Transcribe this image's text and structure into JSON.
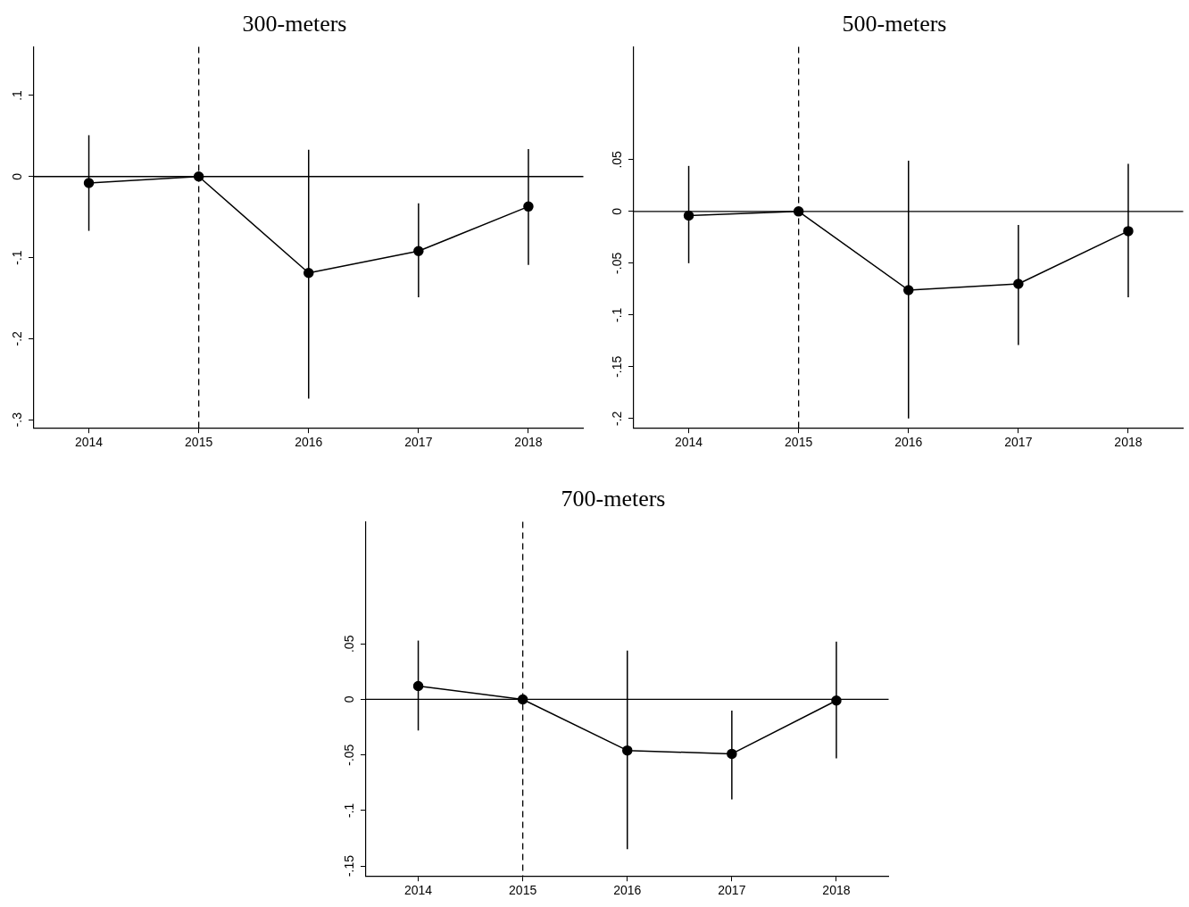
{
  "chart_data": [
    {
      "type": "line",
      "title": "300-meters",
      "x": [
        2014,
        2015,
        2016,
        2017,
        2018
      ],
      "series": [
        {
          "color": "#000000",
          "values": [
            -0.008,
            0,
            -0.119,
            -0.092,
            -0.037
          ],
          "errors": [
            [
              -0.067,
              0.051
            ],
            null,
            [
              -0.274,
              0.033
            ],
            [
              -0.149,
              -0.033
            ],
            [
              -0.109,
              0.034
            ]
          ]
        }
      ],
      "xlim": [
        2013.5,
        2018.5
      ],
      "xticks": [
        2014,
        2015,
        2016,
        2017,
        2018
      ],
      "ylim": [
        -0.31,
        0.16
      ],
      "yticks": [
        {
          "value": -0.3,
          "label": "-.3"
        },
        {
          "value": -0.2,
          "label": "-.2"
        },
        {
          "value": -0.1,
          "label": "-.1"
        },
        {
          "value": 0,
          "label": "0"
        },
        {
          "value": 0.1,
          "label": ".1"
        }
      ],
      "ref_lines": [
        {
          "axis": "y",
          "value": 0,
          "line_style": "solid"
        },
        {
          "axis": "x",
          "value": 2015,
          "line_style": "dashed"
        }
      ],
      "marker": "circle",
      "line_style": "solid",
      "grid": false
    },
    {
      "type": "line",
      "title": "500-meters",
      "x": [
        2014,
        2015,
        2016,
        2017,
        2018
      ],
      "series": [
        {
          "color": "#000000",
          "values": [
            -0.004,
            0,
            -0.076,
            -0.07,
            -0.019
          ],
          "errors": [
            [
              -0.05,
              0.044
            ],
            null,
            [
              -0.2,
              0.049
            ],
            [
              -0.129,
              -0.013
            ],
            [
              -0.083,
              0.046
            ]
          ]
        }
      ],
      "xlim": [
        2013.5,
        2018.5
      ],
      "xticks": [
        2014,
        2015,
        2016,
        2017,
        2018
      ],
      "ylim": [
        -0.209,
        0.159
      ],
      "yticks": [
        {
          "value": -0.2,
          "label": "-.2"
        },
        {
          "value": -0.15,
          "label": "-.15"
        },
        {
          "value": -0.1,
          "label": "-.1"
        },
        {
          "value": -0.05,
          "label": "-.05"
        },
        {
          "value": 0,
          "label": "0"
        },
        {
          "value": 0.05,
          "label": ".05"
        }
      ],
      "ref_lines": [
        {
          "axis": "y",
          "value": 0,
          "line_style": "solid"
        },
        {
          "axis": "x",
          "value": 2015,
          "line_style": "dashed"
        }
      ],
      "marker": "circle",
      "line_style": "solid",
      "grid": false
    },
    {
      "type": "line",
      "title": "700-meters",
      "x": [
        2014,
        2015,
        2016,
        2017,
        2018
      ],
      "series": [
        {
          "color": "#000000",
          "values": [
            0.012,
            0,
            -0.046,
            -0.049,
            -0.001
          ],
          "errors": [
            [
              -0.028,
              0.053
            ],
            null,
            [
              -0.135,
              0.044
            ],
            [
              -0.09,
              -0.01
            ],
            [
              -0.053,
              0.052
            ]
          ]
        }
      ],
      "xlim": [
        2013.5,
        2018.5
      ],
      "xticks": [
        2014,
        2015,
        2016,
        2017,
        2018
      ],
      "ylim": [
        -0.159,
        0.16
      ],
      "yticks": [
        {
          "value": -0.15,
          "label": "-.15"
        },
        {
          "value": -0.1,
          "label": "-.1"
        },
        {
          "value": -0.05,
          "label": "-.05"
        },
        {
          "value": 0,
          "label": "0"
        },
        {
          "value": 0.05,
          "label": ".05"
        }
      ],
      "ref_lines": [
        {
          "axis": "y",
          "value": 0,
          "line_style": "solid"
        },
        {
          "axis": "x",
          "value": 2015,
          "line_style": "dashed"
        }
      ],
      "marker": "circle",
      "line_style": "solid",
      "grid": false
    }
  ]
}
